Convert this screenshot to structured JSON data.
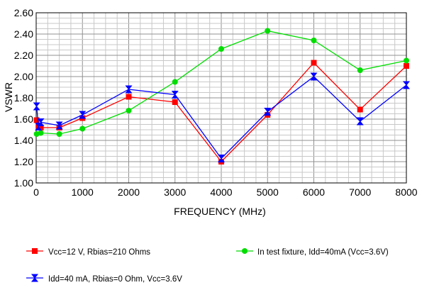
{
  "chart_data": {
    "type": "line",
    "xlabel": "FREQUENCY (MHz)",
    "ylabel": "VSWR",
    "xlim": [
      0,
      8000
    ],
    "ylim": [
      1.0,
      2.6
    ],
    "x_ticks": [
      0,
      1000,
      2000,
      3000,
      4000,
      5000,
      6000,
      7000,
      8000
    ],
    "y_ticks": [
      1.0,
      1.2,
      1.4,
      1.6,
      1.8,
      2.0,
      2.2,
      2.4,
      2.6
    ],
    "y_tick_labels": [
      "1.00",
      "1.20",
      "1.40",
      "1.60",
      "1.80",
      "2.00",
      "2.20",
      "2.40",
      "2.60"
    ],
    "x_tick_labels": [
      "0",
      "1000",
      "2000",
      "3000",
      "4000",
      "5000",
      "6000",
      "7000",
      "8000"
    ],
    "grid": true,
    "legend_position": "bottom",
    "series": [
      {
        "name": "Vcc=12 V, Rbias=210 Ohms",
        "color": "#ff0000",
        "marker": "square",
        "points": [
          [
            10,
            1.59
          ],
          [
            50,
            1.53
          ],
          [
            100,
            1.52
          ],
          [
            500,
            1.52
          ],
          [
            1000,
            1.61
          ],
          [
            2000,
            1.81
          ],
          [
            3000,
            1.76
          ],
          [
            4000,
            1.2
          ],
          [
            5000,
            1.64
          ],
          [
            6000,
            2.13
          ],
          [
            7000,
            1.69
          ],
          [
            8000,
            2.1
          ]
        ]
      },
      {
        "name": "In test fixture, Idd=40mA (Vcc=3.6V)",
        "color": "#00dd00",
        "marker": "circle",
        "points": [
          [
            10,
            1.46
          ],
          [
            100,
            1.47
          ],
          [
            500,
            1.46
          ],
          [
            1000,
            1.51
          ],
          [
            2000,
            1.68
          ],
          [
            3000,
            1.95
          ],
          [
            4000,
            2.26
          ],
          [
            5000,
            2.43
          ],
          [
            6000,
            2.34
          ],
          [
            7000,
            2.06
          ],
          [
            8000,
            2.15
          ]
        ]
      },
      {
        "name": "Idd=40 mA, Rbias=0 Ohm, Vcc=3.6V",
        "color": "#0000ff",
        "marker": "bowtie",
        "points": [
          [
            10,
            1.72
          ],
          [
            50,
            1.53
          ],
          [
            100,
            1.57
          ],
          [
            500,
            1.54
          ],
          [
            1000,
            1.64
          ],
          [
            2000,
            1.88
          ],
          [
            3000,
            1.83
          ],
          [
            4000,
            1.23
          ],
          [
            5000,
            1.67
          ],
          [
            6000,
            2.0
          ],
          [
            7000,
            1.58
          ],
          [
            8000,
            1.92
          ]
        ]
      }
    ]
  }
}
